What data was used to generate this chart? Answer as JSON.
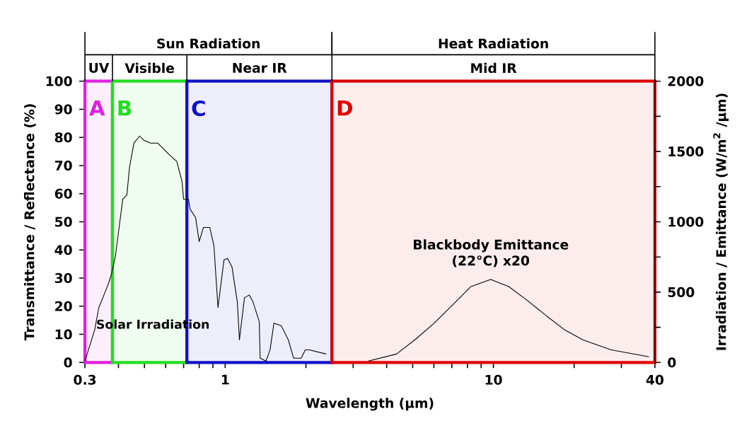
{
  "chart_data": {
    "type": "line",
    "xlabel": "Wavelength (µm)",
    "ylabel": "Transmittance / Reflectance (%)",
    "y2label": "Irradiation / Emittance (W/m$^{2}$ /µm)",
    "log": "x",
    "xlim": [
      0.3,
      40
    ],
    "xticks": [
      0.3,
      {
        "value": 0.4,
        "label": null
      },
      {
        "value": 0.5,
        "label": null
      },
      {
        "value": 0.6,
        "label": null
      },
      {
        "value": 0.7,
        "label": null
      },
      {
        "value": 0.8,
        "label": null
      },
      {
        "value": 0.9,
        "label": null
      },
      1,
      {
        "value": 2,
        "label": null
      },
      {
        "value": 3,
        "label": null
      },
      {
        "value": 4,
        "label": null
      },
      {
        "value": 5,
        "label": null
      },
      {
        "value": 6,
        "label": null
      },
      {
        "value": 7,
        "label": null
      },
      {
        "value": 8,
        "label": null
      },
      {
        "value": 9,
        "label": null
      },
      10,
      {
        "value": 20,
        "label": null
      },
      {
        "value": 30,
        "label": null
      },
      40
    ],
    "ylim": [
      0,
      100
    ],
    "yticks": [
      0,
      10,
      20,
      30,
      40,
      50,
      60,
      70,
      80,
      90,
      100
    ],
    "y2lim": [
      0,
      2000
    ],
    "y2ticks": [
      0,
      {
        "value": 250,
        "label": null
      },
      500,
      {
        "value": 750,
        "label": null
      },
      1000,
      {
        "value": 1250,
        "label": null
      },
      1500,
      {
        "value": 1750,
        "label": null
      },
      2000
    ],
    "series": [
      {
        "name": "Solar Irradiation",
        "axis": "y2",
        "color": "#000000",
        "x": [
          0.3,
          0.326,
          0.338,
          0.355,
          0.367,
          0.377,
          0.39,
          0.415,
          0.43,
          0.44,
          0.457,
          0.48,
          0.497,
          0.527,
          0.56,
          0.595,
          0.617,
          0.66,
          0.69,
          0.7,
          0.73,
          0.74,
          0.776,
          0.8,
          0.83,
          0.876,
          0.908,
          0.94,
          0.99,
          1.02,
          1.06,
          1.11,
          1.13,
          1.18,
          1.23,
          1.27,
          1.34,
          1.35,
          1.42,
          1.47,
          1.52,
          1.62,
          1.72,
          1.8,
          1.92,
          1.99,
          2.06,
          2.38
        ],
        "values": [
          10,
          230,
          390,
          490,
          560,
          630,
          760,
          1160,
          1190,
          1390,
          1560,
          1610,
          1580,
          1560,
          1560,
          1510,
          1480,
          1430,
          1290,
          1160,
          1160,
          1090,
          1030,
          860,
          960,
          960,
          830,
          390,
          730,
          740,
          680,
          430,
          160,
          460,
          480,
          430,
          290,
          30,
          10,
          90,
          280,
          260,
          160,
          30,
          30,
          90,
          90,
          60
        ]
      },
      {
        "name": "Blackbody Emittance (22°C) x20",
        "axis": "y2",
        "color": "#000000",
        "x": [
          3.42,
          4.35,
          5.09,
          6.02,
          7.05,
          8.25,
          9.77,
          11.4,
          13.4,
          15.8,
          18.5,
          21.6,
          27.5,
          38
        ],
        "values": [
          10,
          60,
          160,
          280,
          410,
          540,
          590,
          540,
          440,
          330,
          230,
          160,
          90,
          40
        ]
      }
    ],
    "bands": [
      {
        "axis": "x",
        "from": 0.3,
        "to": 0.38,
        "label": "A",
        "color": "#e020e0"
      },
      {
        "axis": "x",
        "from": 0.38,
        "to": 0.72,
        "label": "B",
        "color": "#22dd22"
      },
      {
        "axis": "x",
        "from": 0.72,
        "to": 2.5,
        "label": "C",
        "color": "#1010c8"
      },
      {
        "axis": "x",
        "from": 2.5,
        "to": 40,
        "label": "D",
        "color": "#dd0000"
      }
    ],
    "annotations": [
      "UV",
      "Visible",
      "Near IR",
      "Mid IR",
      "Sun Radiation",
      "Heat Radiation"
    ]
  }
}
